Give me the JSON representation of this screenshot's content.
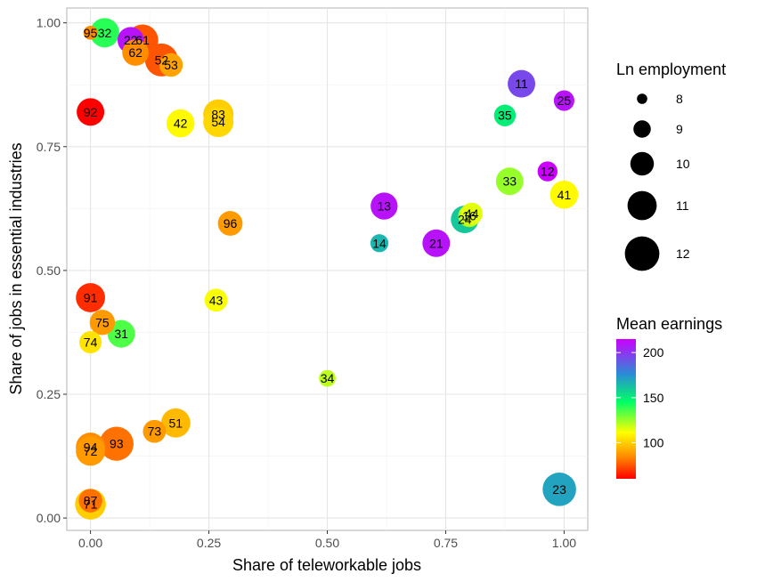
{
  "chart_data": {
    "type": "scatter",
    "xlabel": "Share of teleworkable jobs",
    "ylabel": "Share of jobs in essential industries",
    "xlim": [
      -0.05,
      1.05
    ],
    "ylim": [
      -0.025,
      1.03
    ],
    "x_ticks": [
      "0.00",
      "0.25",
      "0.50",
      "0.75",
      "1.00"
    ],
    "x_tick_values": [
      0,
      0.25,
      0.5,
      0.75,
      1.0
    ],
    "y_ticks": [
      "0.00",
      "0.25",
      "0.50",
      "0.75",
      "1.00"
    ],
    "y_tick_values": [
      0,
      0.25,
      0.5,
      0.75,
      1.0
    ],
    "grid": true,
    "size_legend": {
      "title": "Ln employment",
      "entries": [
        {
          "label": "8",
          "value": 8
        },
        {
          "label": "9",
          "value": 9
        },
        {
          "label": "10",
          "value": 10
        },
        {
          "label": "11",
          "value": 11
        },
        {
          "label": "12",
          "value": 12
        }
      ]
    },
    "color_legend": {
      "title": "Mean earnings",
      "min": 60,
      "max": 215,
      "tick_labels": [
        "200",
        "150",
        "100"
      ],
      "tick_values": [
        200,
        150,
        100
      ]
    },
    "points": [
      {
        "label": "95",
        "x": 0.0,
        "y": 0.98,
        "ln_emp": 8.5,
        "earnings": 85
      },
      {
        "label": "32",
        "x": 0.03,
        "y": 0.98,
        "ln_emp": 11.0,
        "earnings": 140
      },
      {
        "label": "22",
        "x": 0.085,
        "y": 0.965,
        "ln_emp": 10.5,
        "earnings": 210
      },
      {
        "label": "61",
        "x": 0.11,
        "y": 0.965,
        "ln_emp": 11.4,
        "earnings": 75
      },
      {
        "label": "62",
        "x": 0.095,
        "y": 0.94,
        "ln_emp": 10.5,
        "earnings": 85
      },
      {
        "label": "52",
        "x": 0.15,
        "y": 0.925,
        "ln_emp": 11.7,
        "earnings": 75
      },
      {
        "label": "53",
        "x": 0.17,
        "y": 0.915,
        "ln_emp": 10.0,
        "earnings": 90
      },
      {
        "label": "92",
        "x": 0.0,
        "y": 0.82,
        "ln_emp": 10.7,
        "earnings": 58
      },
      {
        "label": "42",
        "x": 0.19,
        "y": 0.797,
        "ln_emp": 10.8,
        "earnings": 110
      },
      {
        "label": "83",
        "x": 0.27,
        "y": 0.815,
        "ln_emp": 11.2,
        "earnings": 100
      },
      {
        "label": "54",
        "x": 0.27,
        "y": 0.8,
        "ln_emp": 11.2,
        "earnings": 102
      },
      {
        "label": "96",
        "x": 0.295,
        "y": 0.595,
        "ln_emp": 10.2,
        "earnings": 88
      },
      {
        "label": "91",
        "x": 0.0,
        "y": 0.445,
        "ln_emp": 11.0,
        "earnings": 68
      },
      {
        "label": "75",
        "x": 0.025,
        "y": 0.395,
        "ln_emp": 10.3,
        "earnings": 88
      },
      {
        "label": "31",
        "x": 0.065,
        "y": 0.372,
        "ln_emp": 10.7,
        "earnings": 135
      },
      {
        "label": "74",
        "x": 0.0,
        "y": 0.355,
        "ln_emp": 9.8,
        "earnings": 105
      },
      {
        "label": "43",
        "x": 0.265,
        "y": 0.44,
        "ln_emp": 9.9,
        "earnings": 112
      },
      {
        "label": "34",
        "x": 0.5,
        "y": 0.282,
        "ln_emp": 8.9,
        "earnings": 120
      },
      {
        "label": "51",
        "x": 0.18,
        "y": 0.192,
        "ln_emp": 11.0,
        "earnings": 95
      },
      {
        "label": "73",
        "x": 0.135,
        "y": 0.175,
        "ln_emp": 9.9,
        "earnings": 88
      },
      {
        "label": "93",
        "x": 0.055,
        "y": 0.15,
        "ln_emp": 11.9,
        "earnings": 80
      },
      {
        "label": "94",
        "x": 0.0,
        "y": 0.143,
        "ln_emp": 11.0,
        "earnings": 85
      },
      {
        "label": "72",
        "x": 0.0,
        "y": 0.135,
        "ln_emp": 11.0,
        "earnings": 88
      },
      {
        "label": "87",
        "x": 0.0,
        "y": 0.035,
        "ln_emp": 10.0,
        "earnings": 80
      },
      {
        "label": "71",
        "x": 0.0,
        "y": 0.028,
        "ln_emp": 11.3,
        "earnings": 100
      },
      {
        "label": "11",
        "x": 0.91,
        "y": 0.877,
        "ln_emp": 10.7,
        "earnings": 195
      },
      {
        "label": "25",
        "x": 1.0,
        "y": 0.843,
        "ln_emp": 9.5,
        "earnings": 210
      },
      {
        "label": "35",
        "x": 0.875,
        "y": 0.813,
        "ln_emp": 9.7,
        "earnings": 150
      },
      {
        "label": "12",
        "x": 0.965,
        "y": 0.7,
        "ln_emp": 9.4,
        "earnings": 215
      },
      {
        "label": "33",
        "x": 0.885,
        "y": 0.68,
        "ln_emp": 10.7,
        "earnings": 125
      },
      {
        "label": "41",
        "x": 1.0,
        "y": 0.653,
        "ln_emp": 10.8,
        "earnings": 110
      },
      {
        "label": "13",
        "x": 0.62,
        "y": 0.63,
        "ln_emp": 10.6,
        "earnings": 210
      },
      {
        "label": "24",
        "x": 0.79,
        "y": 0.603,
        "ln_emp": 10.7,
        "earnings": 160
      },
      {
        "label": "16",
        "x": 0.8,
        "y": 0.61,
        "ln_emp": 9.8,
        "earnings": 120
      },
      {
        "label": "44",
        "x": 0.805,
        "y": 0.615,
        "ln_emp": 9.7,
        "earnings": 115
      },
      {
        "label": "14",
        "x": 0.61,
        "y": 0.555,
        "ln_emp": 9.1,
        "earnings": 165
      },
      {
        "label": "21",
        "x": 0.73,
        "y": 0.555,
        "ln_emp": 10.7,
        "earnings": 210
      },
      {
        "label": "23",
        "x": 0.99,
        "y": 0.058,
        "ln_emp": 11.8,
        "earnings": 170
      }
    ]
  }
}
